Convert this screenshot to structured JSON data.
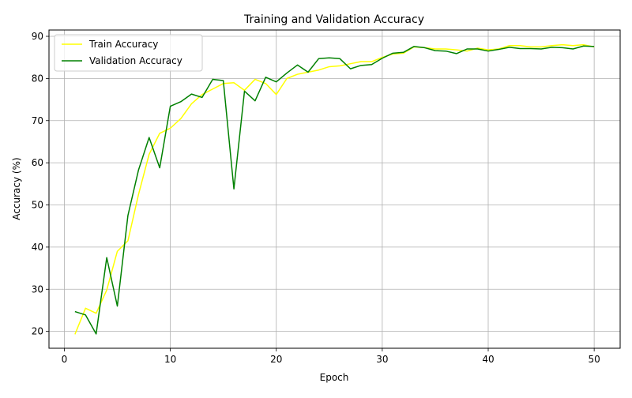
{
  "chart_data": {
    "type": "line",
    "title": "Training and Validation Accuracy",
    "xlabel": "Epoch",
    "ylabel": "Accuracy (%)",
    "xlim": [
      -1.45,
      52.45
    ],
    "ylim": [
      16,
      91.5
    ],
    "xticks": [
      0,
      10,
      20,
      30,
      40,
      50
    ],
    "yticks": [
      20,
      30,
      40,
      50,
      60,
      70,
      80,
      90
    ],
    "grid": true,
    "legend_position": "top-left",
    "x": [
      1,
      2,
      3,
      4,
      5,
      6,
      7,
      8,
      9,
      10,
      11,
      12,
      13,
      14,
      15,
      16,
      17,
      18,
      19,
      20,
      21,
      22,
      23,
      24,
      25,
      26,
      27,
      28,
      29,
      30,
      31,
      32,
      33,
      34,
      35,
      36,
      37,
      38,
      39,
      40,
      41,
      42,
      43,
      44,
      45,
      46,
      47,
      48,
      49,
      50
    ],
    "series": [
      {
        "name": "Train Accuracy",
        "color": "#ffff00",
        "values": [
          19.3,
          25.5,
          24.3,
          29.8,
          39.0,
          41.5,
          52.5,
          62.0,
          67.0,
          68.2,
          70.5,
          74.0,
          76.2,
          77.5,
          78.8,
          79.0,
          77.2,
          79.8,
          78.8,
          76.2,
          80.0,
          81.0,
          81.5,
          82.0,
          82.8,
          83.0,
          83.5,
          84.0,
          84.0,
          85.0,
          85.8,
          86.0,
          87.5,
          87.3,
          87.0,
          87.0,
          86.8,
          86.5,
          87.2,
          86.8,
          87.0,
          87.8,
          87.8,
          87.5,
          87.5,
          87.8,
          88.0,
          87.8,
          88.0,
          87.5
        ]
      },
      {
        "name": "Validation Accuracy",
        "color": "#008000",
        "values": [
          24.7,
          23.9,
          19.4,
          37.5,
          26.0,
          47.5,
          58.3,
          66.0,
          58.8,
          73.4,
          74.5,
          76.3,
          75.5,
          79.8,
          79.5,
          53.8,
          77.0,
          74.7,
          80.3,
          79.2,
          81.3,
          83.2,
          81.5,
          84.7,
          84.9,
          84.7,
          82.3,
          83.1,
          83.3,
          84.8,
          86.0,
          86.2,
          87.6,
          87.3,
          86.6,
          86.5,
          85.9,
          87.0,
          87.0,
          86.5,
          86.9,
          87.4,
          87.1,
          87.1,
          87.0,
          87.4,
          87.3,
          87.0,
          87.7,
          87.6
        ]
      }
    ]
  }
}
